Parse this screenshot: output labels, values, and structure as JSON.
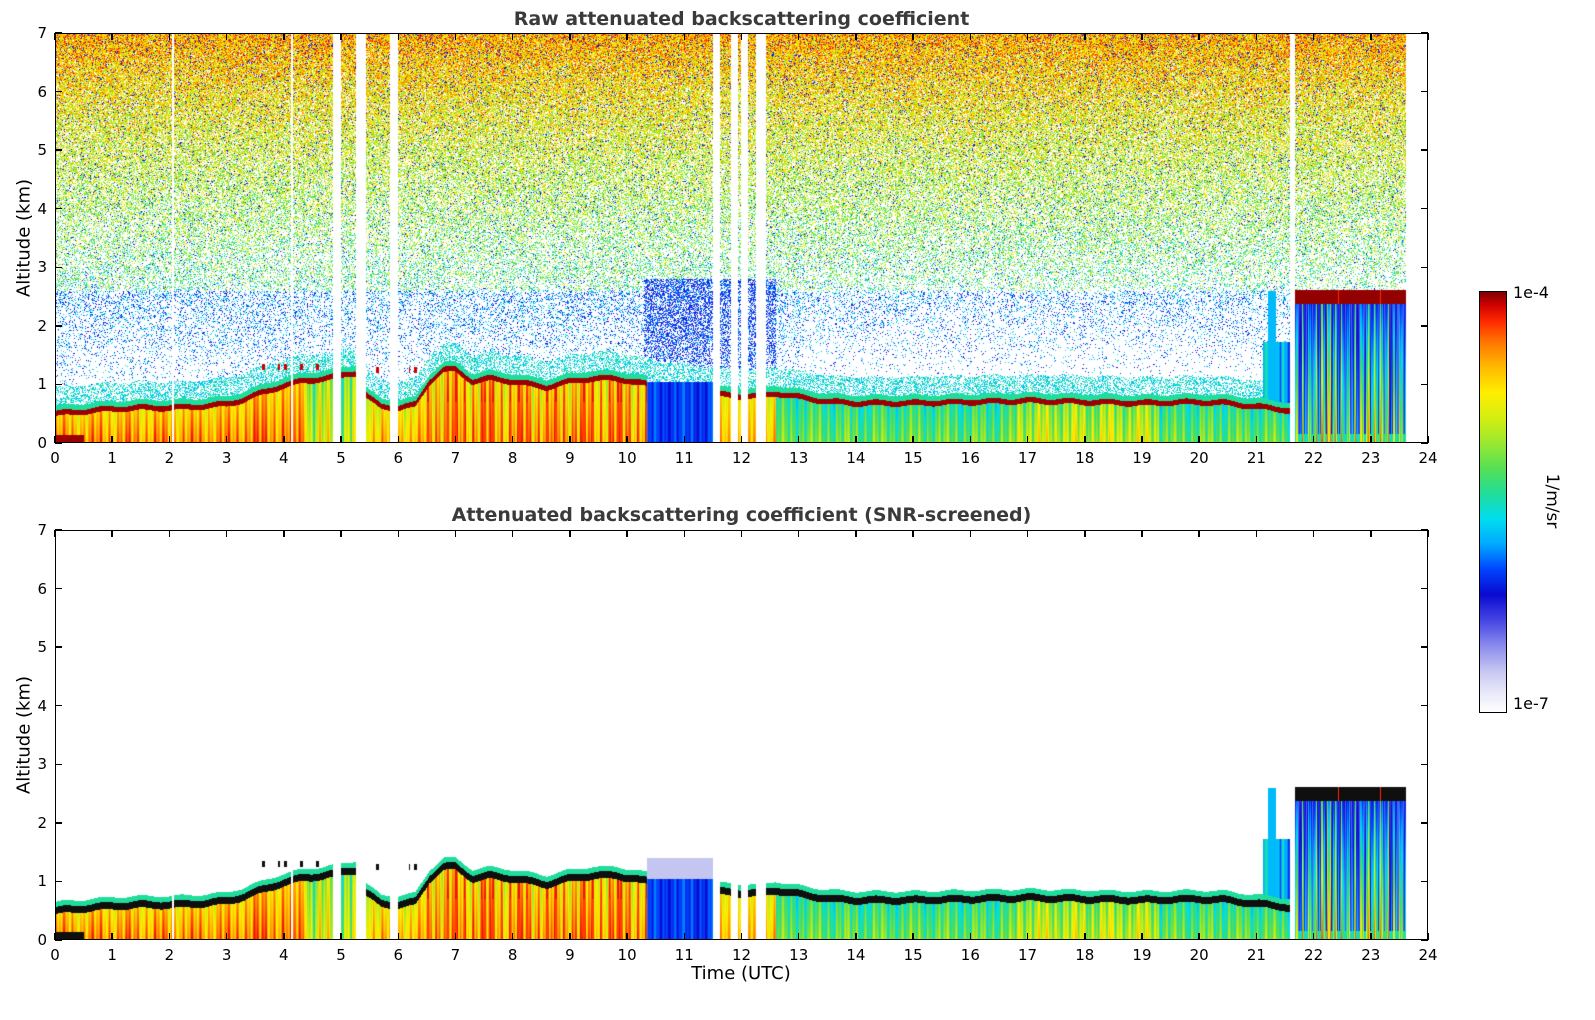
{
  "chart_data": {
    "type": "heatmap",
    "x": {
      "label": "Time (UTC)",
      "min": 0,
      "max": 24,
      "ticks": [
        0,
        1,
        2,
        3,
        4,
        5,
        6,
        7,
        8,
        9,
        10,
        11,
        12,
        13,
        14,
        15,
        16,
        17,
        18,
        19,
        20,
        21,
        22,
        23,
        24
      ]
    },
    "y": {
      "label": "Altitude (km)",
      "min": 0,
      "max": 7,
      "ticks": [
        0,
        1,
        2,
        3,
        4,
        5,
        6,
        7
      ]
    },
    "colorbar": {
      "units": "1/m/sr",
      "top_label": "1e-4",
      "bottom_label": "1e-7",
      "scale": "log",
      "stops": [
        [
          0.0,
          "#ffffff"
        ],
        [
          0.05,
          "#e6e6fa"
        ],
        [
          0.1,
          "#c4c4f2"
        ],
        [
          0.16,
          "#8888ec"
        ],
        [
          0.22,
          "#4444e4"
        ],
        [
          0.28,
          "#0a0ad0"
        ],
        [
          0.34,
          "#0044ff"
        ],
        [
          0.4,
          "#00aaff"
        ],
        [
          0.46,
          "#00ddee"
        ],
        [
          0.52,
          "#22dd99"
        ],
        [
          0.58,
          "#55e055"
        ],
        [
          0.64,
          "#99e830"
        ],
        [
          0.7,
          "#d4ee11"
        ],
        [
          0.76,
          "#ffee00"
        ],
        [
          0.82,
          "#ffbb00"
        ],
        [
          0.88,
          "#ff7700"
        ],
        [
          0.93,
          "#ff2a00"
        ],
        [
          0.97,
          "#cc0000"
        ],
        [
          1.0,
          "#7f0000"
        ]
      ]
    },
    "panels": [
      {
        "id": "raw",
        "title": "Raw attenuated backscattering coefficient",
        "noise": true
      },
      {
        "id": "screened",
        "title": "Attenuated backscattering coefficient (SNR-screened)",
        "noise": false,
        "layer_marker_color": "#000000"
      }
    ],
    "boundary_layer_height": {
      "t": [
        0,
        0.3,
        0.6,
        1.0,
        1.5,
        2.0,
        2.5,
        3.0,
        3.3,
        3.6,
        4.0,
        4.3,
        4.7,
        5.0,
        5.25,
        5.45,
        5.7,
        6.0,
        6.3,
        6.55,
        6.8,
        7.0,
        7.3,
        7.6,
        8.0,
        8.3,
        8.6,
        9.0,
        9.4,
        9.8,
        10.1,
        10.35,
        10.6,
        11.0,
        11.4,
        11.7,
        12.0,
        12.35,
        12.6,
        12.9,
        13.2,
        13.6,
        14.0,
        15.0,
        16.0,
        17.0,
        18.0,
        19.0,
        20.0,
        20.5,
        21.0,
        21.4,
        21.6,
        22.0,
        23.0,
        23.6
      ],
      "z": [
        0.5,
        0.52,
        0.55,
        0.58,
        0.6,
        0.6,
        0.62,
        0.66,
        0.74,
        0.85,
        0.98,
        1.05,
        1.1,
        1.15,
        1.2,
        0.8,
        0.62,
        0.6,
        0.65,
        1.05,
        1.25,
        1.25,
        1.05,
        1.1,
        1.05,
        1.0,
        0.95,
        1.05,
        1.1,
        1.1,
        1.05,
        1.0,
        0.95,
        0.9,
        0.85,
        0.82,
        0.8,
        0.8,
        0.85,
        0.8,
        0.75,
        0.7,
        0.68,
        0.68,
        0.7,
        0.72,
        0.7,
        0.68,
        0.7,
        0.68,
        0.62,
        0.58,
        0.55,
        0.52,
        0.5,
        0.5
      ]
    },
    "gaps": [
      [
        2.04,
        2.08
      ],
      [
        4.12,
        4.16
      ],
      [
        4.86,
        5.0
      ],
      [
        5.27,
        5.44
      ],
      [
        5.86,
        6.0
      ],
      [
        11.5,
        11.63
      ],
      [
        11.82,
        11.94
      ],
      [
        12.0,
        12.12
      ],
      [
        12.26,
        12.42
      ],
      [
        21.58,
        21.68
      ]
    ],
    "segments": [
      {
        "t0": 0,
        "t1": 3.2,
        "base": 0.78,
        "var": 0.1
      },
      {
        "t0": 3.2,
        "t1": 4.4,
        "base": 0.8,
        "var": 0.1
      },
      {
        "t0": 4.4,
        "t1": 5.45,
        "base": 0.62,
        "var": 0.15
      },
      {
        "t0": 5.45,
        "t1": 6.5,
        "base": 0.74,
        "var": 0.1
      },
      {
        "t0": 6.5,
        "t1": 10.35,
        "base": 0.8,
        "var": 0.16
      },
      {
        "t0": 10.35,
        "t1": 11.52,
        "base": 0.3,
        "var": 0.05
      },
      {
        "t0": 11.52,
        "t1": 12.6,
        "base": 0.74,
        "var": 0.08
      },
      {
        "t0": 12.6,
        "t1": 16.8,
        "base": 0.52,
        "var": 0.1
      },
      {
        "t0": 16.8,
        "t1": 19.3,
        "base": 0.62,
        "var": 0.12
      },
      {
        "t0": 19.3,
        "t1": 21.7,
        "base": 0.52,
        "var": 0.1
      },
      {
        "t0": 21.7,
        "t1": 24.01,
        "base": 0.5,
        "var": 0.1
      }
    ],
    "features": {
      "surface_blob": {
        "t0": 0,
        "t1": 0.5,
        "ztop": 0.14
      },
      "rain": {
        "t0": 10.35,
        "t1": 11.52,
        "ztop": 1.05,
        "faint_ztop": 1.4,
        "value": 0.28
      },
      "noise_boost": {
        "t0": 10.3,
        "t1": 12.6,
        "ztop": 2.8,
        "fill_add": 0.3
      },
      "pre_cloud_column": {
        "t0": 21.12,
        "t1": 21.58,
        "ztop": 1.72
      },
      "cloud_spike": {
        "t0": 21.2,
        "t1": 21.34,
        "ztop": 2.6
      },
      "cloud_deck": {
        "t0": 21.68,
        "t1": 23.62,
        "base": 2.38,
        "top": 2.62
      },
      "data_end": 23.62,
      "line_hidden": [
        [
          10.4,
          11.52
        ]
      ],
      "cloud_dashes": [
        {
          "t0": 3.4,
          "t1": 4.65,
          "z": 1.3
        },
        {
          "t0": 5.5,
          "t1": 6.45,
          "z": 1.25
        }
      ],
      "red_streak_window": {
        "t0": 6.5,
        "t1": 10.35
      }
    }
  }
}
